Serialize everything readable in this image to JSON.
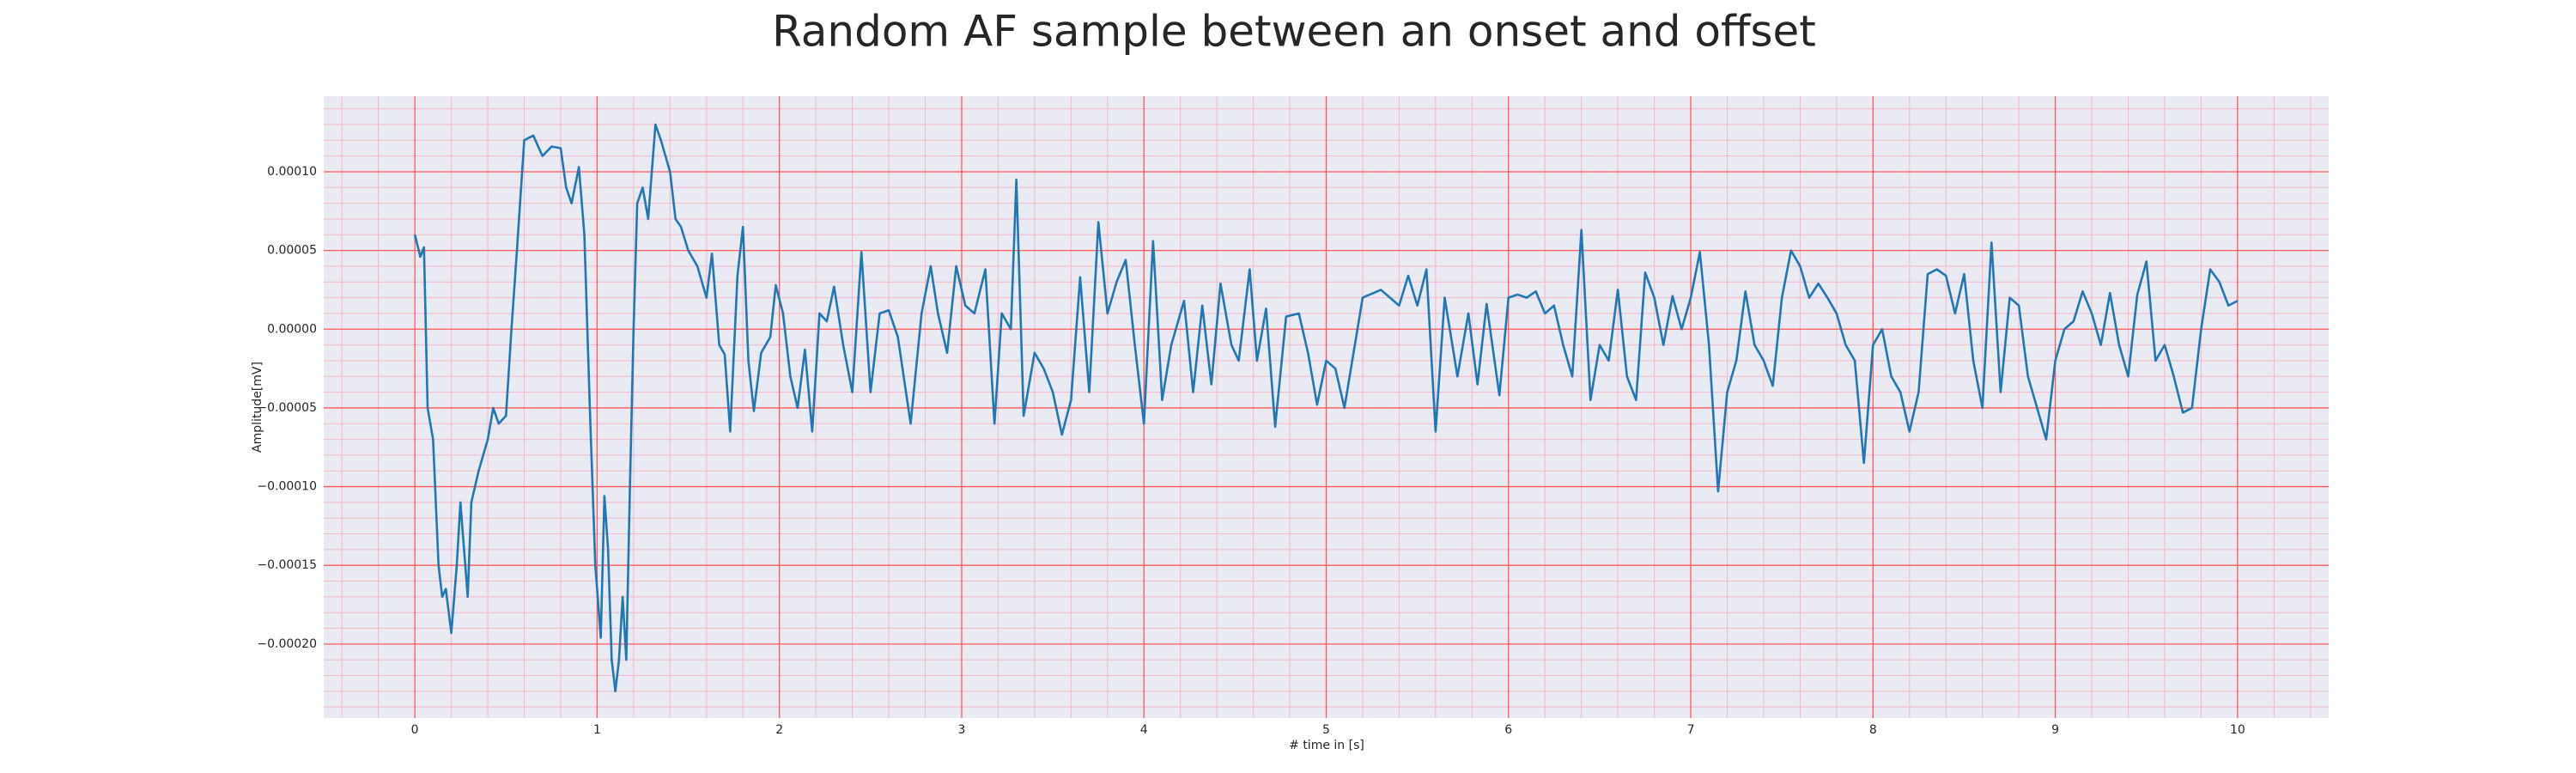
{
  "chart_data": {
    "type": "line",
    "title": "Random AF sample between an onset and offset",
    "xlabel": "# time in [s]",
    "ylabel": "Amplitude[mV]",
    "xlim": [
      -0.5,
      10.5
    ],
    "ylim": [
      -0.000247,
      0.000148
    ],
    "xticks": [
      0,
      1,
      2,
      3,
      4,
      5,
      6,
      7,
      8,
      9,
      10
    ],
    "yticks": [
      {
        "value": -0.0002,
        "label": "−0.00020"
      },
      {
        "value": -0.00015,
        "label": "−0.00015"
      },
      {
        "value": -0.0001,
        "label": "−0.00010"
      },
      {
        "value": -5e-05,
        "label": "−0.00005"
      },
      {
        "value": 0,
        "label": "0.00000"
      },
      {
        "value": 5e-05,
        "label": "0.00005"
      },
      {
        "value": 0.0001,
        "label": "0.00010"
      }
    ],
    "grid": true,
    "minor_grid": true,
    "minor_divisions": 5,
    "grid_color": "#ff5a5a",
    "minor_grid_color": "#f5b8c8",
    "background": "#eaeaf2",
    "color": "#1f77b4",
    "x": [
      0,
      0.03,
      0.05,
      0.07,
      0.1,
      0.13,
      0.15,
      0.17,
      0.2,
      0.23,
      0.25,
      0.27,
      0.29,
      0.31,
      0.35,
      0.4,
      0.43,
      0.46,
      0.5,
      0.53,
      0.56,
      0.6,
      0.65,
      0.7,
      0.75,
      0.8,
      0.83,
      0.86,
      0.9,
      0.93,
      0.96,
      0.99,
      1.02,
      1.04,
      1.06,
      1.08,
      1.1,
      1.12,
      1.14,
      1.16,
      1.18,
      1.2,
      1.22,
      1.25,
      1.28,
      1.32,
      1.35,
      1.4,
      1.43,
      1.46,
      1.5,
      1.55,
      1.6,
      1.63,
      1.67,
      1.7,
      1.73,
      1.77,
      1.8,
      1.83,
      1.86,
      1.9,
      1.95,
      1.98,
      2.02,
      2.06,
      2.1,
      2.14,
      2.18,
      2.22,
      2.26,
      2.3,
      2.35,
      2.4,
      2.45,
      2.5,
      2.55,
      2.6,
      2.65,
      2.72,
      2.78,
      2.83,
      2.87,
      2.92,
      2.97,
      3.02,
      3.07,
      3.13,
      3.18,
      3.22,
      3.27,
      3.3,
      3.34,
      3.4,
      3.45,
      3.5,
      3.55,
      3.6,
      3.65,
      3.7,
      3.75,
      3.8,
      3.85,
      3.9,
      3.95,
      4.0,
      4.05,
      4.1,
      4.15,
      4.22,
      4.27,
      4.32,
      4.37,
      4.42,
      4.48,
      4.52,
      4.58,
      4.62,
      4.67,
      4.72,
      4.78,
      4.85,
      4.9,
      4.95,
      5.0,
      5.05,
      5.1,
      5.2,
      5.3,
      5.4,
      5.45,
      5.5,
      5.55,
      5.6,
      5.65,
      5.72,
      5.78,
      5.83,
      5.88,
      5.95,
      6.0,
      6.05,
      6.1,
      6.15,
      6.2,
      6.25,
      6.3,
      6.35,
      6.4,
      6.45,
      6.5,
      6.55,
      6.6,
      6.65,
      6.7,
      6.75,
      6.8,
      6.85,
      6.9,
      6.95,
      7.0,
      7.05,
      7.1,
      7.15,
      7.2,
      7.25,
      7.3,
      7.35,
      7.4,
      7.45,
      7.5,
      7.55,
      7.6,
      7.65,
      7.7,
      7.75,
      7.8,
      7.85,
      7.9,
      7.95,
      8.0,
      8.05,
      8.1,
      8.15,
      8.2,
      8.25,
      8.3,
      8.35,
      8.4,
      8.45,
      8.5,
      8.55,
      8.6,
      8.65,
      8.7,
      8.75,
      8.8,
      8.85,
      8.9,
      8.95,
      9.0,
      9.05,
      9.1,
      9.15,
      9.2,
      9.25,
      9.3,
      9.35,
      9.4,
      9.45,
      9.5,
      9.55,
      9.6,
      9.65,
      9.7,
      9.75,
      9.8,
      9.85,
      9.9,
      9.95,
      10.0
    ],
    "values": [
      6e-05,
      4.6e-05,
      5.2e-05,
      -5e-05,
      -7e-05,
      -0.00015,
      -0.00017,
      -0.000165,
      -0.000193,
      -0.00015,
      -0.00011,
      -0.00014,
      -0.00017,
      -0.00011,
      -9e-05,
      -7e-05,
      -5e-05,
      -6e-05,
      -5.5e-05,
      0,
      5e-05,
      0.00012,
      0.000123,
      0.00011,
      0.000116,
      0.000115,
      9e-05,
      8e-05,
      0.000103,
      6e-05,
      -5e-05,
      -0.00015,
      -0.000196,
      -0.000106,
      -0.00014,
      -0.00021,
      -0.00023,
      -0.00021,
      -0.00017,
      -0.00021,
      -0.0001,
      0,
      8e-05,
      9e-05,
      7e-05,
      0.00013,
      0.00012,
      0.0001,
      7e-05,
      6.5e-05,
      5e-05,
      4e-05,
      2e-05,
      4.8e-05,
      -1e-05,
      -1.6e-05,
      -6.5e-05,
      3.4e-05,
      6.5e-05,
      -2e-05,
      -5.2e-05,
      -1.5e-05,
      -5e-06,
      2.8e-05,
      1e-05,
      -3e-05,
      -5e-05,
      -1.3e-05,
      -6.5e-05,
      1e-05,
      5e-06,
      2.7e-05,
      -1e-05,
      -4e-05,
      4.9e-05,
      -4e-05,
      1e-05,
      1.2e-05,
      -5e-06,
      -6e-05,
      1e-05,
      4e-05,
      1e-05,
      -1.5e-05,
      4e-05,
      1.5e-05,
      1e-05,
      3.8e-05,
      -6e-05,
      1e-05,
      0,
      9.5e-05,
      -5.5e-05,
      -1.5e-05,
      -2.5e-05,
      -4e-05,
      -6.7e-05,
      -4.5e-05,
      3.3e-05,
      -4e-05,
      6.8e-05,
      1e-05,
      3e-05,
      4.4e-05,
      -1e-05,
      -6e-05,
      5.6e-05,
      -4.5e-05,
      -1e-05,
      1.8e-05,
      -4e-05,
      1.5e-05,
      -3.5e-05,
      2.9e-05,
      -1e-05,
      -2e-05,
      3.8e-05,
      -2e-05,
      1.3e-05,
      -6.2e-05,
      8e-06,
      1e-05,
      -1.5e-05,
      -4.8e-05,
      -2e-05,
      -2.5e-05,
      -5e-05,
      2e-05,
      2.5e-05,
      1.5e-05,
      3.4e-05,
      1.5e-05,
      3.8e-05,
      -6.5e-05,
      2e-05,
      -3e-05,
      1e-05,
      -3.5e-05,
      1.6e-05,
      -4.2e-05,
      2e-05,
      2.2e-05,
      2e-05,
      2.4e-05,
      1e-05,
      1.5e-05,
      -1e-05,
      -3e-05,
      6.3e-05,
      -4.5e-05,
      -1e-05,
      -2e-05,
      2.5e-05,
      -3e-05,
      -4.5e-05,
      3.6e-05,
      2e-05,
      -1e-05,
      2.1e-05,
      0,
      2e-05,
      4.9e-05,
      -1e-05,
      -0.000103,
      -4e-05,
      -2e-05,
      2.4e-05,
      -1e-05,
      -2e-05,
      -3.6e-05,
      2e-05,
      5e-05,
      4e-05,
      2e-05,
      2.9e-05,
      2e-05,
      1e-05,
      -1e-05,
      -2e-05,
      -8.5e-05,
      -1e-05,
      0,
      -3e-05,
      -4e-05,
      -6.5e-05,
      -4e-05,
      3.5e-05,
      3.8e-05,
      3.4e-05,
      1e-05,
      3.5e-05,
      -2e-05,
      -5e-05,
      5.5e-05,
      -4e-05,
      2e-05,
      1.5e-05,
      -3e-05,
      -5e-05,
      -7e-05,
      -2e-05,
      0,
      5e-06,
      2.4e-05,
      1e-05,
      -1e-05,
      2.3e-05,
      -1e-05,
      -3e-05,
      2.2e-05,
      4.3e-05,
      -2e-05,
      -1e-05,
      -3e-05,
      -5.3e-05,
      -5e-05,
      0,
      3.8e-05,
      3e-05,
      1.5e-05,
      1.8e-05
    ]
  }
}
